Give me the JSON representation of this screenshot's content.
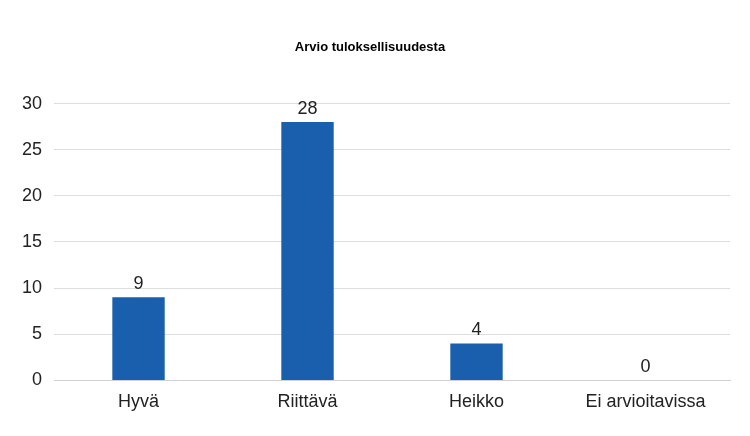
{
  "chart_data": {
    "type": "bar",
    "title": "Arvio tuloksellisuudesta",
    "categories": [
      "Hyvä",
      "Riittävä",
      "Heikko",
      "Ei arvioitavissa"
    ],
    "values": [
      9,
      28,
      4,
      0
    ],
    "color": "#1a5fad",
    "ylim": [
      0,
      30
    ],
    "yticks": [
      0,
      5,
      10,
      15,
      20,
      25,
      30
    ],
    "grid": true,
    "data_labels": true
  }
}
